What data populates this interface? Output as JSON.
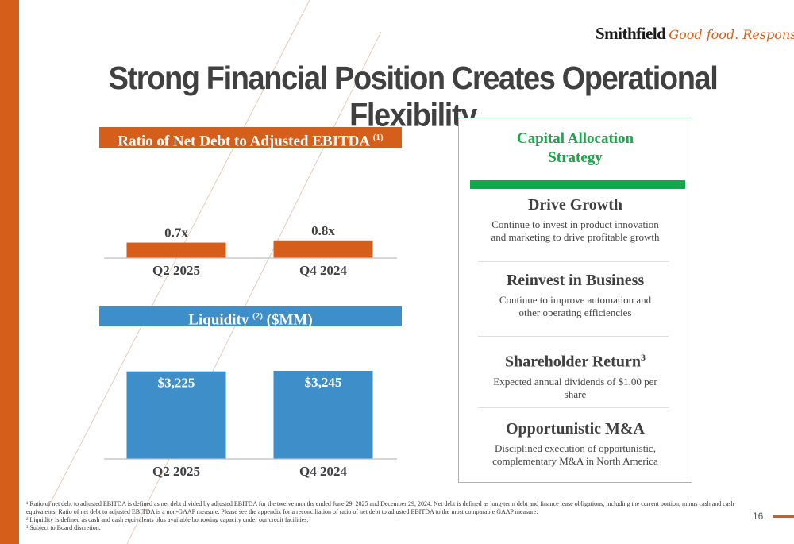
{
  "logo": {
    "brand": "Smithfield",
    "tagline": "Good food. Responsibly."
  },
  "title": "Strong Financial Position Creates Operational Flexibility",
  "chart_data": [
    {
      "type": "bar",
      "title": "Ratio of Net Debt to Adjusted EBITDA",
      "title_sup": "(1)",
      "categories": [
        "Q2 2025",
        "Q4 2024"
      ],
      "values": [
        0.7,
        0.8
      ],
      "value_labels": [
        "0.7x",
        "0.8x"
      ],
      "color": "#d55e1b",
      "ylim": [
        0,
        3.6
      ]
    },
    {
      "type": "bar",
      "title_pre": "Liquidity",
      "title_sup": "(2)",
      "title_post": "($MM)",
      "categories": [
        "Q2 2025",
        "Q4 2024"
      ],
      "values": [
        3225,
        3245
      ],
      "value_labels": [
        "$3,225",
        "$3,245"
      ],
      "color": "#3e8ec9",
      "ylim": [
        0,
        3245
      ]
    }
  ],
  "panel": {
    "title_line1": "Capital Allocation",
    "title_line2": "Strategy",
    "items": [
      {
        "title": "Drive Growth",
        "sup": "",
        "desc": "Continue to invest in product innovation and marketing to drive profitable growth"
      },
      {
        "title": "Reinvest in Business",
        "sup": "",
        "desc": "Continue to improve automation and other operating efficiencies"
      },
      {
        "title": "Shareholder Return",
        "sup": "3",
        "desc": "Expected annual dividends of $1.00 per share"
      },
      {
        "title": "Opportunistic M&A",
        "sup": "",
        "desc": "Disciplined execution of opportunistic, complementary M&A in North America"
      }
    ]
  },
  "footnotes": [
    "¹ Ratio of net debt to adjusted EBITDA is defined as net debt divided by adjusted EBITDA for the twelve months ended June 29, 2025 and December 29, 2024. Net debt is defined as long-term debt and finance lease obligations, including the current portion, minus cash and cash equivalents. Ratio of net debt to adjusted EBITDA is a non-GAAP measure.  Please see the appendix for a reconciliation of ratio of net debt to adjusted EBITDA to the most comparable GAAP measure.",
    "² Liquidity is defined as cash and cash equivalents plus available borrowing capacity under our credit facilities.",
    "³ Subject to Board discretion."
  ],
  "page_number": "16"
}
